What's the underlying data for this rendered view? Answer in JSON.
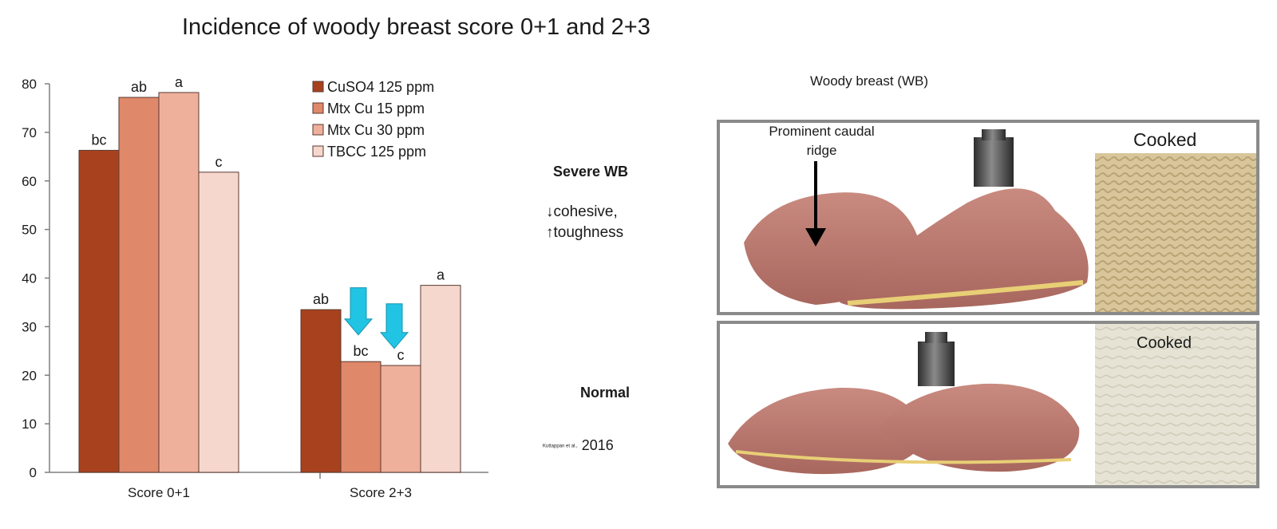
{
  "title": "Incidence of woody breast score 0+1 and 2+3",
  "chart_data": {
    "type": "bar",
    "categories": [
      "Score 0+1",
      "Score 2+3"
    ],
    "series": [
      {
        "name": "CuSO4 125 ppm",
        "color": "#a8421e",
        "values": [
          66.3,
          33.5
        ],
        "labels": [
          "bc",
          "ab"
        ]
      },
      {
        "name": "Mtx Cu 15 ppm",
        "color": "#e0886a",
        "values": [
          77.2,
          22.8
        ],
        "labels": [
          "ab",
          "bc"
        ]
      },
      {
        "name": "Mtx Cu 30 ppm",
        "color": "#efb09b",
        "values": [
          78.2,
          22.0
        ],
        "labels": [
          "a",
          "c"
        ]
      },
      {
        "name": "TBCC 125 ppm",
        "color": "#f6d7cd",
        "values": [
          61.8,
          38.5
        ],
        "labels": [
          "c",
          "a"
        ]
      }
    ],
    "ylim": [
      0,
      80
    ],
    "yticks": [
      0,
      10,
      20,
      30,
      40,
      50,
      60,
      70,
      80
    ],
    "legend_position": "top-right",
    "grid": false,
    "annotation_arrow_color": "#22c4e4"
  },
  "figure": {
    "heading": "Woody breast (WB)",
    "severe_label": "Severe WB",
    "severe_desc_line1": "↓cohesive,",
    "severe_desc_line2": "↑toughness",
    "normal_label": "Normal",
    "citation_authors": "Kuttappan et al.,",
    "citation_year": " 2016",
    "ridge_line1": "Prominent caudal",
    "ridge_line2": "ridge",
    "cooked_1": "Cooked",
    "cooked_2": "Cooked"
  }
}
